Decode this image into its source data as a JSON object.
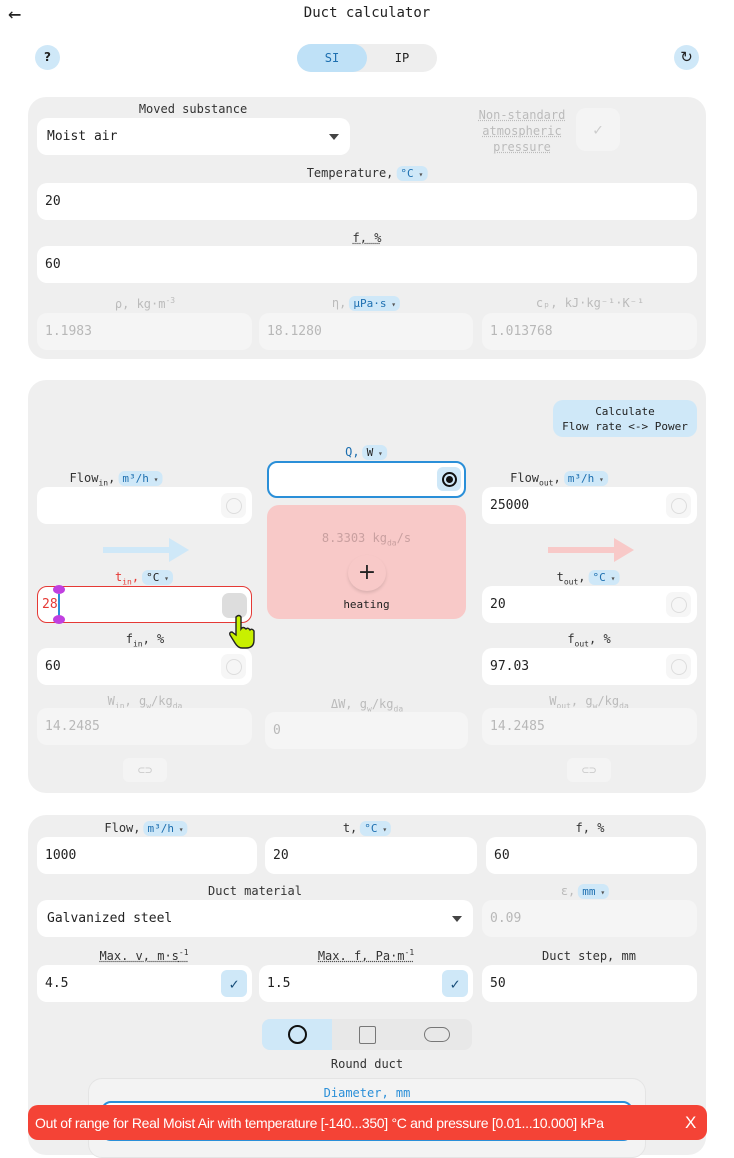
{
  "header": {
    "title": "Duct calculator",
    "units": [
      "SI",
      "IP"
    ],
    "active_unit": "SI"
  },
  "substance": {
    "label": "Moved substance",
    "value": "Moist air",
    "nonstd_label": "Non-standard atmospheric pressure",
    "temp_label": "Temperature,",
    "temp_unit": "°C",
    "temp_value": "20",
    "rh_label": "f, %",
    "rh_value": "60",
    "rho_label": "ρ, kg·m",
    "rho_sup": "-3",
    "rho_value": "1.1983",
    "eta_label": "η,",
    "eta_unit": "μPa·s",
    "eta_value": "18.1280",
    "cp_label": "cₚ, kJ·kg⁻¹·K⁻¹",
    "cp_value": "1.013768"
  },
  "process": {
    "calc_button": [
      "Calculate",
      "Flow rate <-> Power"
    ],
    "q_label": "Q,",
    "q_unit": "W",
    "q_value": "",
    "flow_in_label": "Flow",
    "flow_in_sub": "in",
    "flow_unit": "m³/h",
    "flow_in_value": "",
    "flow_out_label": "Flow",
    "flow_out_sub": "out",
    "flow_out_value": "25000",
    "mass_flow": "8.3303",
    "mass_unit": "kg",
    "mass_sub": "da",
    "mass_tail": "/s",
    "mode": "heating",
    "plus": "+",
    "t_in_label": "t",
    "t_in_sub": "in",
    "t_unit": "°C",
    "t_in_value": "28",
    "t_out_label": "t",
    "t_out_sub": "out",
    "t_out_value": "20",
    "f_in_label": "f",
    "f_in_sub": "in",
    "f_unit": "%",
    "f_in_value": "60",
    "f_out_label": "f",
    "f_out_sub": "out",
    "f_out_value": "97.03",
    "w_in_label": "W",
    "w_in_sub": "in",
    "w_unit": "g",
    "w_unit_sub": "w",
    "w_unit2": "/kg",
    "w_unit2_sub": "da",
    "w_in_value": "14.2485",
    "dw_label": "ΔW,",
    "dw_value": "0",
    "w_out_label": "W",
    "w_out_sub": "out",
    "w_out_value": "14.2485",
    "colors": {
      "cold": "#cfe8f8",
      "hot": "#f8c9c8",
      "error": "#e53935"
    }
  },
  "duct": {
    "flow_label": "Flow,",
    "flow_unit": "m³/h",
    "flow_value": "1000",
    "t_label": "t,",
    "t_unit": "°C",
    "t_value": "20",
    "f_label": "f, %",
    "f_value": "60",
    "material_label": "Duct material",
    "material_value": "Galvanized steel",
    "eps_label": "ε,",
    "eps_unit": "mm",
    "eps_value": "0.09",
    "maxv_label": "Max. v, m·s",
    "maxv_sup": "-1",
    "maxv_value": "4.5",
    "maxf_label": "Max. f, Pa·m",
    "maxf_sup": "-1",
    "maxf_value": "1.5",
    "step_label": "Duct step, mm",
    "step_value": "50",
    "shape_label": "Round duct",
    "shapes": [
      "round",
      "rectangular",
      "oval"
    ],
    "active_shape": "round",
    "diameter_label": "Diameter, mm"
  },
  "toast": {
    "message": "Out of range for Real Moist Air with temperature [-140...350] °C and pressure [0.01...10.000] kPa",
    "close": "X",
    "color": "#f44336"
  }
}
